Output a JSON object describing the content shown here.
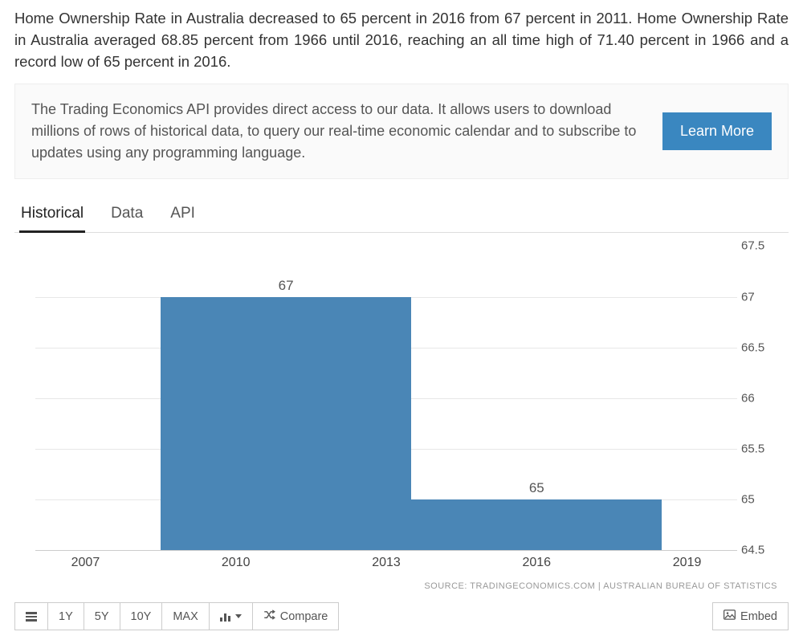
{
  "intro_text": "Home Ownership Rate in Australia decreased to 65 percent in 2016 from 67 percent in 2011. Home Ownership Rate in Australia averaged 68.85 percent from 1966 until 2016, reaching an all time high of 71.40 percent in 1966 and a record low of 65 percent in 2016.",
  "api_box": {
    "text": "The Trading Economics API provides direct access to our data. It allows users to download millions of rows of historical data, to query our real-time economic calendar and to subscribe to updates using any programming language.",
    "button_label": "Learn More"
  },
  "tabs": [
    {
      "label": "Historical",
      "active": true
    },
    {
      "label": "Data",
      "active": false
    },
    {
      "label": "API",
      "active": false
    }
  ],
  "chart": {
    "type": "bar",
    "ylim": [
      64.5,
      67.5
    ],
    "yticks": [
      64.5,
      65,
      65.5,
      66,
      66.5,
      67,
      67.5
    ],
    "xticks": [
      2007,
      2010,
      2013,
      2016,
      2019
    ],
    "x_range": [
      2006,
      2020
    ],
    "bars": [
      {
        "x_start": 2008.5,
        "x_end": 2013.5,
        "value": 67,
        "label": "67"
      },
      {
        "x_start": 2013.5,
        "x_end": 2018.5,
        "value": 65,
        "label": "65"
      }
    ],
    "bar_color": "#4a86b6",
    "grid_color": "#e7e7e7",
    "background_color": "#ffffff",
    "label_fontsize": 17,
    "axis_fontsize": 15
  },
  "source_text": "SOURCE: TRADINGECONOMICS.COM | AUSTRALIAN BUREAU OF STATISTICS",
  "toolbar": {
    "ranges": [
      "1Y",
      "5Y",
      "10Y",
      "MAX"
    ],
    "compare_label": "Compare",
    "embed_label": "Embed"
  }
}
